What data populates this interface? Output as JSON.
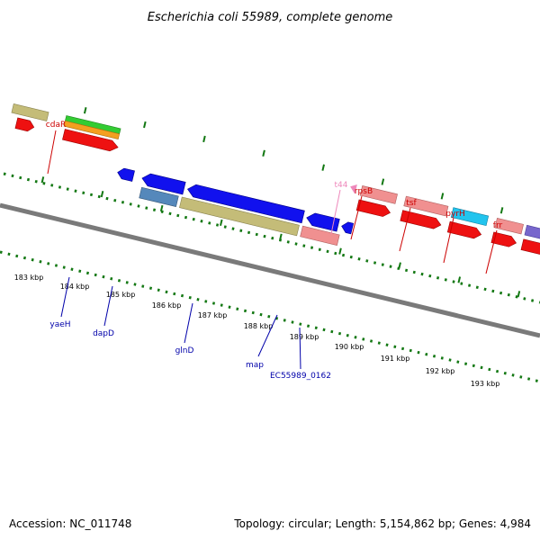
{
  "title": "Escherichia coli 55989, complete genome",
  "footer": {
    "accession": "Accession: NC_011748",
    "summary": "Topology: circular; Length: 5,154,862 bp; Genes: 4,984"
  },
  "colors": {
    "label_top": "#cc0000",
    "label_bottom": "#0000aa",
    "label_trna": "#ee88bb",
    "ticks": "#006600",
    "backbone": "#808080"
  },
  "scale_labels": [
    "183 kbp",
    "184 kbp",
    "185 kbp",
    "186 kbp",
    "187 kbp",
    "188 kbp",
    "189 kbp",
    "190 kbp",
    "191 kbp",
    "192 kbp",
    "193 kbp"
  ],
  "gene_labels_top": [
    "cdaR",
    "t44",
    "rpsB",
    "tsf",
    "pyrH",
    "frr"
  ],
  "gene_labels_bottom": [
    "yaeH",
    "dapD",
    "glnD",
    "map",
    "EC55989_0162"
  ]
}
